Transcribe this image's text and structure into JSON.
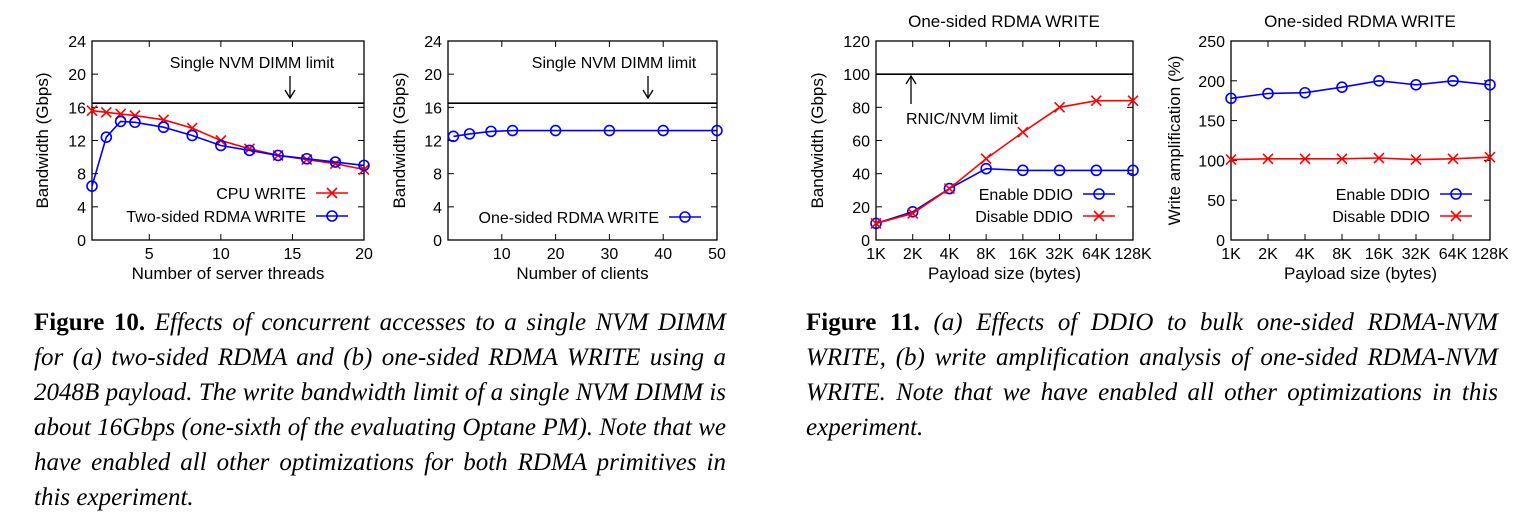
{
  "chart_data": [
    {
      "id": "fig10a",
      "type": "line",
      "title": "",
      "xlabel": "Number of server threads",
      "ylabel": "Bandwidth (Gbps)",
      "xlim": [
        1,
        20
      ],
      "ylim": [
        0,
        24
      ],
      "xticks": [
        5,
        10,
        15,
        20
      ],
      "yticks": [
        0,
        4,
        8,
        12,
        16,
        20,
        24
      ],
      "grid": false,
      "legend_position": "bottom-right",
      "hline": {
        "value": 16.5,
        "label": "Single NVM DIMM limit"
      },
      "series": [
        {
          "name": "CPU WRITE",
          "color": "#ff0000",
          "marker": "x",
          "x": [
            1,
            2,
            3,
            4,
            6,
            8,
            10,
            12,
            14,
            16,
            18,
            20
          ],
          "y": [
            15.6,
            15.4,
            15.2,
            15.0,
            14.5,
            13.5,
            12.0,
            11.0,
            10.2,
            9.7,
            9.2,
            8.5
          ]
        },
        {
          "name": "Two-sided RDMA WRITE",
          "color": "#0000ff",
          "marker": "o",
          "x": [
            1,
            2,
            3,
            4,
            6,
            8,
            10,
            12,
            14,
            16,
            18,
            20
          ],
          "y": [
            6.5,
            12.4,
            14.3,
            14.2,
            13.6,
            12.6,
            11.4,
            10.8,
            10.2,
            9.8,
            9.4,
            9.0
          ]
        }
      ]
    },
    {
      "id": "fig10b",
      "type": "line",
      "title": "",
      "xlabel": "Number of clients",
      "ylabel": "Bandwidth (Gbps)",
      "xlim": [
        0,
        50
      ],
      "ylim": [
        0,
        24
      ],
      "xticks": [
        10,
        20,
        30,
        40,
        50
      ],
      "yticks": [
        0,
        4,
        8,
        12,
        16,
        20,
        24
      ],
      "grid": false,
      "legend_position": "bottom-right",
      "hline": {
        "value": 16.5,
        "label": "Single NVM DIMM limit"
      },
      "series": [
        {
          "name": "One-sided RDMA WRITE",
          "color": "#0000ff",
          "marker": "o",
          "x": [
            1,
            4,
            8,
            12,
            20,
            30,
            40,
            50
          ],
          "y": [
            12.5,
            12.8,
            13.1,
            13.2,
            13.2,
            13.2,
            13.2,
            13.2
          ]
        }
      ]
    },
    {
      "id": "fig11a",
      "type": "line",
      "title": "One-sided RDMA WRITE",
      "xlabel": "Payload size (bytes)",
      "ylabel": "Bandwidth (Gbps)",
      "categories": [
        "1K",
        "2K",
        "4K",
        "8K",
        "16K",
        "32K",
        "64K",
        "128K"
      ],
      "ylim": [
        0,
        120
      ],
      "yticks": [
        0,
        20,
        40,
        60,
        80,
        100,
        120
      ],
      "grid": false,
      "legend_position": "bottom-right",
      "hline": {
        "value": 100,
        "label": "RNIC/NVM limit"
      },
      "series": [
        {
          "name": "Enable DDIO",
          "color": "#0000ff",
          "marker": "o",
          "values": [
            10,
            17,
            31,
            43,
            42,
            42,
            42,
            42
          ]
        },
        {
          "name": "Disable DDIO",
          "color": "#ff0000",
          "marker": "x",
          "values": [
            10,
            16,
            31,
            49,
            65,
            80,
            84,
            84
          ]
        }
      ]
    },
    {
      "id": "fig11b",
      "type": "line",
      "title": "One-sided RDMA WRITE",
      "xlabel": "Payload size (bytes)",
      "ylabel": "Write amplification (%)",
      "categories": [
        "1K",
        "2K",
        "4K",
        "8K",
        "16K",
        "32K",
        "64K",
        "128K"
      ],
      "ylim": [
        0,
        250
      ],
      "yticks": [
        0,
        50,
        100,
        150,
        200,
        250
      ],
      "grid": false,
      "legend_position": "bottom-right",
      "series": [
        {
          "name": "Enable DDIO",
          "color": "#0000ff",
          "marker": "o",
          "values": [
            178,
            184,
            185,
            192,
            200,
            195,
            200,
            195
          ]
        },
        {
          "name": "Disable DDIO",
          "color": "#ff0000",
          "marker": "x",
          "values": [
            101,
            102,
            102,
            102,
            103,
            101,
            102,
            104
          ]
        }
      ]
    }
  ],
  "captions": {
    "fig10": {
      "label": "Figure 10.",
      "text": "Effects of concurrent accesses to a single NVM DIMM for (a) two-sided RDMA and (b) one-sided RDMA WRITE using a 2048B payload. The write bandwidth limit of a single NVM DIMM is about 16Gbps (one-sixth of the evaluating Optane PM). Note that we have enabled all other optimizations for both RDMA primitives in this experiment."
    },
    "fig11": {
      "label": "Figure 11.",
      "text": "(a) Effects of DDIO to bulk one-sided RDMA-NVM WRITE, (b) write amplification analysis of one-sided RDMA-NVM WRITE. Note that we have enabled all other optimizations in this experiment."
    }
  }
}
